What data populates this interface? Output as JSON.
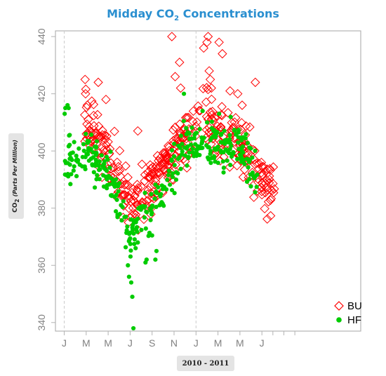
{
  "chart_data": {
    "type": "scatter",
    "title_prefix": "Midday CO",
    "title_sub": "2",
    "title_suffix": " Concentrations",
    "ylabel_prefix": "CO",
    "ylabel_sub": "2",
    "ylabel_unit": "(Parts Per Million)",
    "xlabel": "2010 - 2011",
    "ylim": [
      337,
      442
    ],
    "xlim": [
      -0.4,
      13.5
    ],
    "yticks": [
      340,
      360,
      380,
      400,
      420,
      440
    ],
    "xticks": [
      {
        "x": 0,
        "label": "J"
      },
      {
        "x": 1,
        "label": "M"
      },
      {
        "x": 2,
        "label": "M"
      },
      {
        "x": 3,
        "label": "J"
      },
      {
        "x": 4,
        "label": "S"
      },
      {
        "x": 5,
        "label": "N"
      },
      {
        "x": 6,
        "label": "J"
      },
      {
        "x": 7,
        "label": "M"
      },
      {
        "x": 8,
        "label": "M"
      },
      {
        "x": 9,
        "label": "J"
      }
    ],
    "year_boundaries": [
      0,
      6
    ],
    "grid": false,
    "legend_position": "bottom-right",
    "colors": {
      "BU": "#ff0000",
      "HF": "#00cc00"
    },
    "series": [
      {
        "name": "BU",
        "marker": "open-diamond",
        "anchors": [
          [
            0.9,
            402
          ],
          [
            1.0,
            410
          ],
          [
            1.5,
            405
          ],
          [
            2.0,
            398
          ],
          [
            2.4,
            392
          ],
          [
            2.8,
            388
          ],
          [
            3.2,
            382
          ],
          [
            3.6,
            383
          ],
          [
            4.0,
            390
          ],
          [
            4.4,
            392
          ],
          [
            4.8,
            397
          ],
          [
            5.2,
            403
          ],
          [
            5.6,
            404
          ],
          [
            6.0,
            408
          ],
          [
            6.4,
            412
          ],
          [
            6.8,
            408
          ],
          [
            7.2,
            406
          ],
          [
            7.6,
            404
          ],
          [
            8.0,
            402
          ],
          [
            8.4,
            397
          ],
          [
            8.8,
            392
          ],
          [
            9.2,
            388
          ],
          [
            9.6,
            384
          ]
        ],
        "spread": 5,
        "outliers": [
          [
            0.95,
            425
          ],
          [
            0.97,
            420
          ],
          [
            1.05,
            416
          ],
          [
            1.55,
            424
          ],
          [
            1.9,
            418
          ],
          [
            3.35,
            407
          ],
          [
            4.9,
            440
          ],
          [
            5.05,
            426
          ],
          [
            5.25,
            431
          ],
          [
            5.3,
            422
          ],
          [
            6.35,
            436
          ],
          [
            6.5,
            438
          ],
          [
            6.55,
            440
          ],
          [
            6.6,
            428
          ],
          [
            6.65,
            425
          ],
          [
            6.7,
            422
          ],
          [
            7.05,
            438
          ],
          [
            7.2,
            434
          ],
          [
            7.55,
            421
          ],
          [
            7.9,
            420
          ],
          [
            8.1,
            416
          ],
          [
            8.7,
            424
          ]
        ],
        "count": 400
      },
      {
        "name": "HF",
        "marker": "filled-circle",
        "anchors": [
          [
            0.0,
            398
          ],
          [
            0.4,
            397
          ],
          [
            0.8,
            397
          ],
          [
            1.2,
            400
          ],
          [
            1.6,
            396
          ],
          [
            2.0,
            392
          ],
          [
            2.3,
            387
          ],
          [
            2.6,
            381
          ],
          [
            2.8,
            372
          ],
          [
            3.0,
            368
          ],
          [
            3.2,
            372
          ],
          [
            3.5,
            378
          ],
          [
            3.8,
            376
          ],
          [
            4.0,
            378
          ],
          [
            4.2,
            382
          ],
          [
            4.5,
            387
          ],
          [
            4.8,
            392
          ],
          [
            5.2,
            397
          ],
          [
            5.5,
            403
          ],
          [
            5.8,
            400
          ],
          [
            6.0,
            401
          ],
          [
            6.4,
            403
          ],
          [
            6.8,
            402
          ],
          [
            7.2,
            402
          ],
          [
            7.6,
            402
          ],
          [
            8.0,
            402
          ],
          [
            8.3,
            399
          ],
          [
            8.6,
            393
          ],
          [
            8.8,
            389
          ]
        ],
        "spread": 4,
        "outliers": [
          [
            0.02,
            413
          ],
          [
            0.05,
            415
          ],
          [
            0.15,
            416
          ],
          [
            0.2,
            415
          ],
          [
            2.9,
            360
          ],
          [
            2.95,
            356
          ],
          [
            3.05,
            354
          ],
          [
            3.1,
            349
          ],
          [
            3.15,
            338
          ],
          [
            3.25,
            366
          ],
          [
            3.35,
            368
          ],
          [
            3.7,
            361
          ],
          [
            3.75,
            362
          ],
          [
            4.15,
            362
          ],
          [
            4.2,
            365
          ],
          [
            5.45,
            420
          ],
          [
            5.55,
            408
          ],
          [
            5.7,
            406
          ],
          [
            6.3,
            414
          ],
          [
            7.05,
            413
          ]
        ],
        "count": 380
      }
    ]
  }
}
